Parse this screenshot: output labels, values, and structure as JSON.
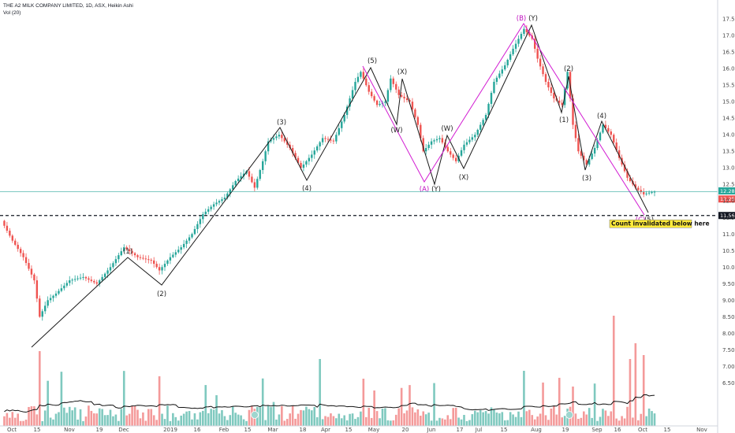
{
  "header": {
    "title": "THE A2 MILK COMPANY LIMITED, 1D, ASX, Heikin Ashi",
    "vol_label": "Vol (20)"
  },
  "chart_data": {
    "type": "candlestick",
    "symbol": "THE A2 MILK COMPANY LIMITED",
    "interval": "1D",
    "exchange": "ASX",
    "style": "Heikin Ashi",
    "grid": false,
    "ylim": [
      5.2,
      17.8
    ],
    "yticks": [
      6.5,
      7.0,
      7.5,
      8.0,
      8.5,
      9.0,
      9.5,
      10.0,
      10.5,
      11.0,
      11.5,
      12.0,
      12.5,
      13.0,
      13.5,
      14.0,
      14.5,
      15.0,
      15.5,
      16.0,
      16.5,
      17.0,
      17.5
    ],
    "ytick_labels": [
      "6.50",
      "7.00",
      "7.50",
      "8.00",
      "8.50",
      "9.00",
      "9.50",
      "10.00",
      "10.50",
      "11.00",
      "11.50",
      "12.00",
      "12.50",
      "13.00",
      "13.50",
      "14.00",
      "14.50",
      "15.00",
      "15.50",
      "16.00",
      "16.50",
      "17.00",
      "17.50"
    ],
    "xticks": [
      "Oct",
      "15",
      "Nov",
      "19",
      "Dec",
      "2019",
      "16",
      "Feb",
      "15",
      "Mar",
      "18",
      "Apr",
      "15",
      "May",
      "20",
      "Jun",
      "17",
      "Jul",
      "15",
      "Aug",
      "19",
      "Sep",
      "16",
      "Oct",
      "15",
      "Nov"
    ],
    "price_path": [
      [
        0,
        11.4
      ],
      [
        4,
        10.8
      ],
      [
        8,
        10.3
      ],
      [
        12,
        9.6
      ],
      [
        14,
        8.5
      ],
      [
        17,
        9.0
      ],
      [
        20,
        9.2
      ],
      [
        25,
        9.6
      ],
      [
        30,
        9.7
      ],
      [
        35,
        9.5
      ],
      [
        40,
        10.0
      ],
      [
        45,
        10.6
      ],
      [
        50,
        10.3
      ],
      [
        55,
        10.2
      ],
      [
        58,
        9.9
      ],
      [
        62,
        10.3
      ],
      [
        66,
        10.6
      ],
      [
        70,
        11.0
      ],
      [
        74,
        11.6
      ],
      [
        78,
        11.9
      ],
      [
        82,
        12.1
      ],
      [
        86,
        12.6
      ],
      [
        90,
        12.9
      ],
      [
        93,
        12.4
      ],
      [
        96,
        13.2
      ],
      [
        98,
        13.8
      ],
      [
        102,
        14.0
      ],
      [
        106,
        13.6
      ],
      [
        110,
        13.0
      ],
      [
        114,
        13.4
      ],
      [
        118,
        13.9
      ],
      [
        122,
        13.8
      ],
      [
        126,
        14.6
      ],
      [
        130,
        15.6
      ],
      [
        132,
        15.9
      ],
      [
        135,
        15.3
      ],
      [
        138,
        14.9
      ],
      [
        141,
        15.0
      ],
      [
        143,
        15.7
      ],
      [
        146,
        15.2
      ],
      [
        150,
        15.0
      ],
      [
        153,
        14.3
      ],
      [
        155,
        13.5
      ],
      [
        158,
        13.8
      ],
      [
        161,
        13.9
      ],
      [
        164,
        13.5
      ],
      [
        167,
        13.2
      ],
      [
        170,
        13.7
      ],
      [
        174,
        14.0
      ],
      [
        178,
        14.6
      ],
      [
        181,
        15.6
      ],
      [
        185,
        16.1
      ],
      [
        188,
        16.6
      ],
      [
        192,
        17.2
      ],
      [
        195,
        16.9
      ],
      [
        197,
        16.3
      ],
      [
        200,
        15.6
      ],
      [
        203,
        15.1
      ],
      [
        206,
        14.9
      ],
      [
        208,
        15.9
      ],
      [
        210,
        14.3
      ],
      [
        212,
        13.5
      ],
      [
        215,
        13.1
      ],
      [
        218,
        13.6
      ],
      [
        221,
        14.3
      ],
      [
        224,
        14.0
      ],
      [
        227,
        13.3
      ],
      [
        230,
        12.7
      ],
      [
        233,
        12.4
      ],
      [
        236,
        12.2
      ],
      [
        238,
        12.25
      ],
      [
        240,
        12.28
      ]
    ],
    "wave_labels": [
      "(1)",
      "(2)",
      "(3)",
      "(4)",
      "(5)",
      "(X)",
      "(W)",
      "(Y)",
      "(W)",
      "(X)",
      "(Y)",
      "(1)",
      "(2)",
      "(3)",
      "(4)",
      "(5)"
    ],
    "magenta_labels": [
      "(A)",
      "(B)",
      "(C)"
    ],
    "invalidation_level": 11.56,
    "current_price": 12.28,
    "bid_price": 12.25,
    "annotation": "Count invalidated below here",
    "price_badges": [
      "12.28",
      "12.25",
      "11.56"
    ],
    "volume": {
      "label": "Vol (20)",
      "ma_period": 20
    },
    "colors": {
      "up": "#26a69a",
      "down": "#ef5350",
      "vol_up": "#7fc9bf",
      "vol_down": "#f49a9a",
      "wave": "#1a1a1a",
      "abc": "#d21cd2",
      "current": "#26a69a",
      "bid": "#ef5350",
      "invalidation": "#131722",
      "note_bg": "#ffeb3b"
    }
  }
}
